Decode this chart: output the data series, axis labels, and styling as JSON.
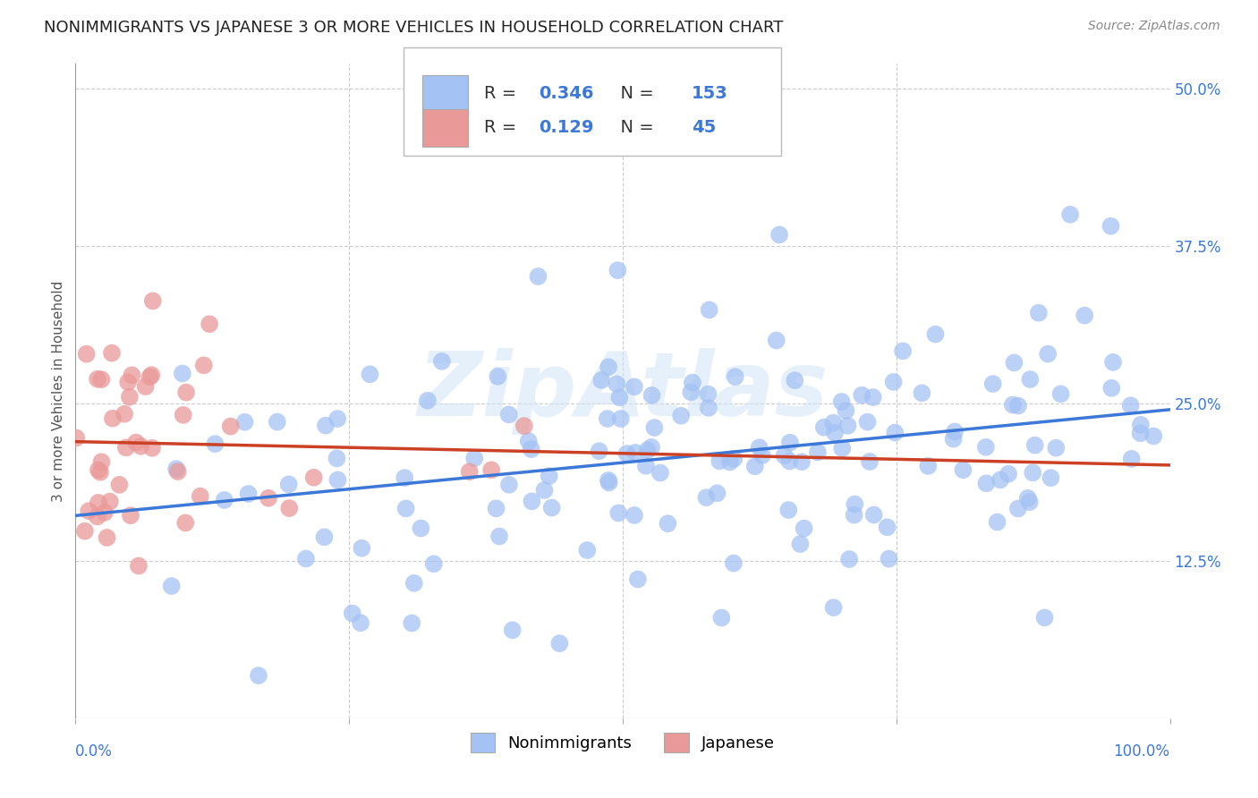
{
  "title": "NONIMMIGRANTS VS JAPANESE 3 OR MORE VEHICLES IN HOUSEHOLD CORRELATION CHART",
  "source": "Source: ZipAtlas.com",
  "ylabel": "3 or more Vehicles in Household",
  "watermark": "ZipAtlas",
  "blue_R": 0.346,
  "blue_N": 153,
  "pink_R": 0.129,
  "pink_N": 45,
  "blue_color": "#a4c2f4",
  "pink_color": "#ea9999",
  "blue_line_color": "#3c78d8",
  "pink_line_color": "#cc4125",
  "xlim": [
    0.0,
    1.0
  ],
  "ylim": [
    0.0,
    0.52
  ],
  "xtick_edge_labels": [
    "0.0%",
    "100.0%"
  ],
  "yticks_right": [
    0.125,
    0.25,
    0.375,
    0.5
  ],
  "ytick_labels_right": [
    "12.5%",
    "25.0%",
    "37.5%",
    "50.0%"
  ],
  "background_color": "#ffffff",
  "grid_color": "#cccccc",
  "title_fontsize": 13,
  "axis_label_fontsize": 11,
  "tick_fontsize": 12,
  "tick_color": "#3c78d8",
  "legend_fontsize": 14
}
